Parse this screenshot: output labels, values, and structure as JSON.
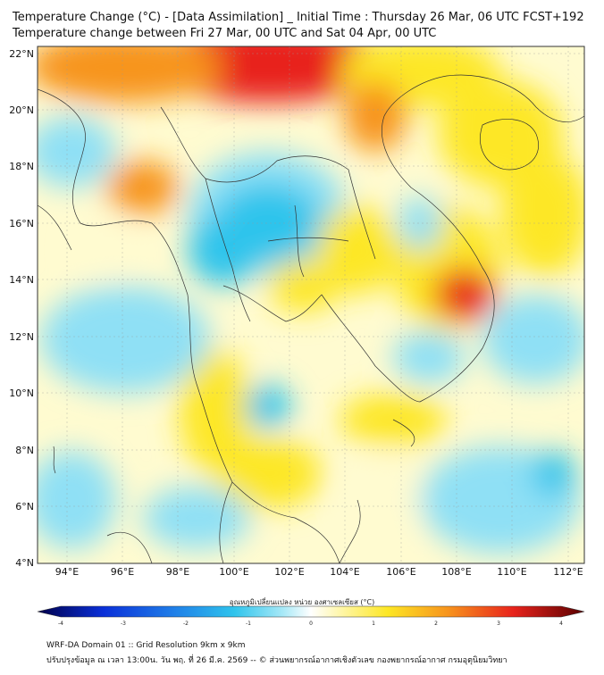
{
  "title_line1": "Temperature Change (°C) - [Data Assimilation] _ Initial Time : Thursday 26 Mar, 06 UTC FCST+192",
  "title_line2": "Temperature change between Fri 27 Mar, 00 UTC and Sat 04 Apr, 00 UTC",
  "lat_labels": [
    "22°N",
    "20°N",
    "18°N",
    "16°N",
    "14°N",
    "12°N",
    "10°N",
    "8°N",
    "6°N",
    "4°N"
  ],
  "lon_labels": [
    "94°E",
    "96°E",
    "98°E",
    "100°E",
    "102°E",
    "104°E",
    "106°E",
    "108°E",
    "110°E",
    "112°E"
  ],
  "colorbar": {
    "label": "อุณหภูมิเปลี่ยนแปลง หน่วย องศาเซลเซียส (°C)",
    "ticks": [
      "-4",
      "-3",
      "-2",
      "-1",
      "0",
      "1",
      "2",
      "3",
      "4"
    ],
    "range": [
      -4,
      4
    ]
  },
  "footer_line1": "WRF-DA Domain 01 :: Grid Resolution 9km x 9km",
  "footer_line2": "ปรับปรุงข้อมูล ณ เวลา 13:00น. วัน พฤ. ที่ 26 มี.ค. 2569 -- © ส่วนพยากรณ์อากาศเชิงตัวเลข กองพยากรณ์อากาศ กรมอุตุนิยมวิทยา",
  "colors": {
    "warm_strong": "#e8231c",
    "warm": "#f7941d",
    "yellow": "#fde725",
    "pale": "#fffbd0",
    "cool": "#8fe0f5",
    "cold": "#2fc4ec"
  }
}
